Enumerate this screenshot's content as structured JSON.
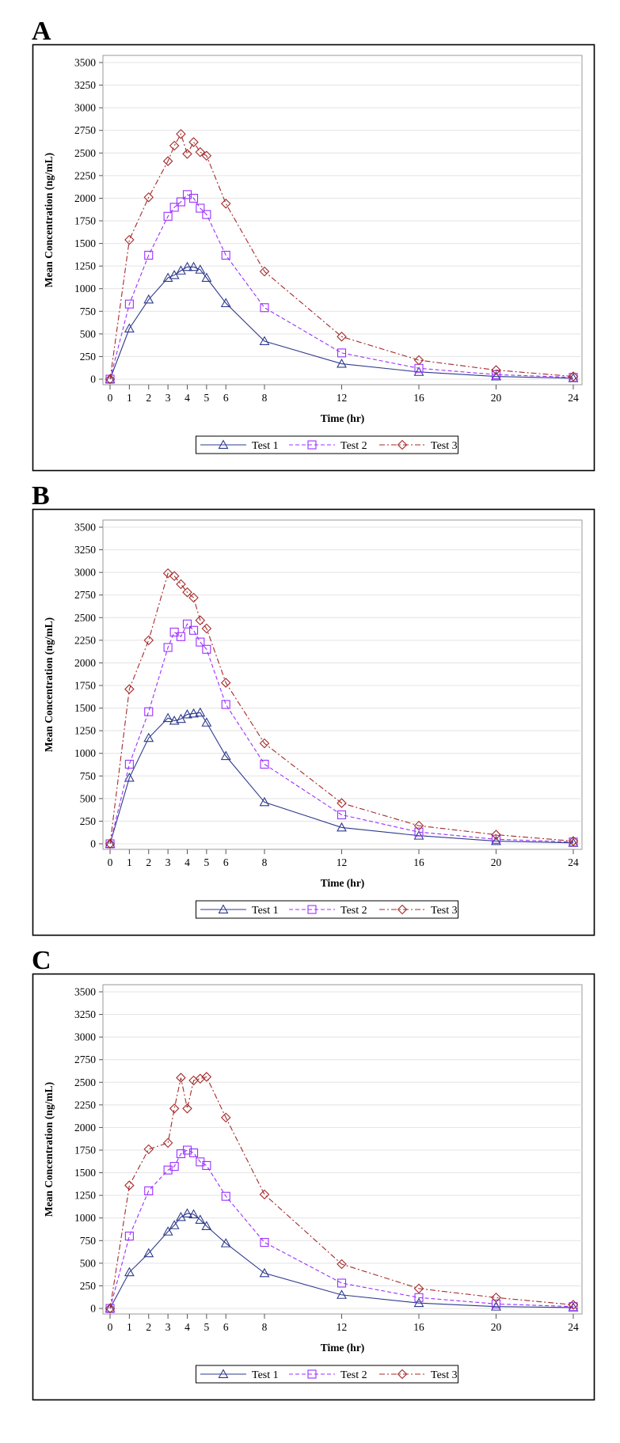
{
  "chart_data": [
    {
      "panel_label": "A",
      "type": "line",
      "xlabel": "Time (hr)",
      "ylabel": "Mean Concentration (ng/mL)",
      "xlim": [
        0,
        24
      ],
      "ylim": [
        0,
        3500
      ],
      "x_ticks": [
        0,
        1,
        2,
        3,
        4,
        5,
        6,
        8,
        12,
        16,
        20,
        24
      ],
      "y_ticks": [
        0,
        250,
        500,
        750,
        1000,
        1250,
        1500,
        1750,
        2000,
        2250,
        2500,
        2750,
        3000,
        3250,
        3500
      ],
      "grid": "horizontal",
      "legend_position": "bottom",
      "x": [
        0,
        1,
        2,
        3,
        3.33,
        3.67,
        4,
        4.33,
        4.67,
        5,
        6,
        8,
        12,
        16,
        20,
        24
      ],
      "series": [
        {
          "name": "Test 1",
          "color": "#2e3a8c",
          "marker": "triangle",
          "dash": "solid",
          "values": [
            0,
            560,
            880,
            1120,
            1150,
            1200,
            1240,
            1240,
            1210,
            1120,
            840,
            420,
            170,
            80,
            30,
            10
          ]
        },
        {
          "name": "Test 2",
          "color": "#9b30ff",
          "marker": "square",
          "dash": "dashed",
          "values": [
            0,
            830,
            1370,
            1800,
            1900,
            1960,
            2040,
            2000,
            1890,
            1820,
            1370,
            790,
            290,
            120,
            50,
            20
          ]
        },
        {
          "name": "Test 3",
          "color": "#a52a2a",
          "marker": "diamond",
          "dash": "dashdot",
          "values": [
            0,
            1540,
            2010,
            2410,
            2580,
            2710,
            2490,
            2620,
            2510,
            2470,
            1940,
            1190,
            470,
            210,
            100,
            30
          ]
        }
      ]
    },
    {
      "panel_label": "B",
      "type": "line",
      "xlabel": "Time (hr)",
      "ylabel": "Mean Concentration (ng/mL)",
      "xlim": [
        0,
        24
      ],
      "ylim": [
        0,
        3500
      ],
      "x_ticks": [
        0,
        1,
        2,
        3,
        4,
        5,
        6,
        8,
        12,
        16,
        20,
        24
      ],
      "y_ticks": [
        0,
        250,
        500,
        750,
        1000,
        1250,
        1500,
        1750,
        2000,
        2250,
        2500,
        2750,
        3000,
        3250,
        3500
      ],
      "grid": "horizontal",
      "legend_position": "bottom",
      "x": [
        0,
        1,
        2,
        3,
        3.33,
        3.67,
        4,
        4.33,
        4.67,
        5,
        6,
        8,
        12,
        16,
        20,
        24
      ],
      "series": [
        {
          "name": "Test 1",
          "color": "#2e3a8c",
          "marker": "triangle",
          "dash": "solid",
          "values": [
            0,
            730,
            1170,
            1390,
            1360,
            1380,
            1430,
            1440,
            1450,
            1340,
            970,
            460,
            180,
            90,
            30,
            10
          ]
        },
        {
          "name": "Test 2",
          "color": "#9b30ff",
          "marker": "square",
          "dash": "dashed",
          "values": [
            0,
            880,
            1460,
            2170,
            2340,
            2290,
            2430,
            2360,
            2230,
            2150,
            1540,
            880,
            320,
            130,
            50,
            20
          ]
        },
        {
          "name": "Test 3",
          "color": "#a52a2a",
          "marker": "diamond",
          "dash": "dashdot",
          "values": [
            0,
            1710,
            2250,
            2990,
            2960,
            2870,
            2780,
            2720,
            2470,
            2380,
            1780,
            1110,
            450,
            200,
            100,
            30
          ]
        }
      ]
    },
    {
      "panel_label": "C",
      "type": "line",
      "xlabel": "Time (hr)",
      "ylabel": "Mean Concentration (ng/mL)",
      "xlim": [
        0,
        24
      ],
      "ylim": [
        0,
        3500
      ],
      "x_ticks": [
        0,
        1,
        2,
        3,
        4,
        5,
        6,
        8,
        12,
        16,
        20,
        24
      ],
      "y_ticks": [
        0,
        250,
        500,
        750,
        1000,
        1250,
        1500,
        1750,
        2000,
        2250,
        2500,
        2750,
        3000,
        3250,
        3500
      ],
      "grid": "horizontal",
      "legend_position": "bottom",
      "x": [
        0,
        1,
        2,
        3,
        3.33,
        3.67,
        4,
        4.33,
        4.67,
        5,
        6,
        8,
        12,
        16,
        20,
        24
      ],
      "series": [
        {
          "name": "Test 1",
          "color": "#2e3a8c",
          "marker": "triangle",
          "dash": "solid",
          "values": [
            0,
            400,
            610,
            850,
            920,
            1010,
            1050,
            1040,
            980,
            910,
            720,
            390,
            150,
            60,
            20,
            10
          ]
        },
        {
          "name": "Test 2",
          "color": "#9b30ff",
          "marker": "square",
          "dash": "dashed",
          "values": [
            0,
            800,
            1300,
            1530,
            1570,
            1710,
            1750,
            1720,
            1620,
            1580,
            1240,
            730,
            280,
            120,
            50,
            20
          ]
        },
        {
          "name": "Test 3",
          "color": "#a52a2a",
          "marker": "diamond",
          "dash": "dashdot",
          "values": [
            0,
            1360,
            1760,
            1830,
            2210,
            2550,
            2210,
            2520,
            2540,
            2560,
            2110,
            1260,
            490,
            220,
            120,
            40
          ]
        }
      ]
    }
  ]
}
